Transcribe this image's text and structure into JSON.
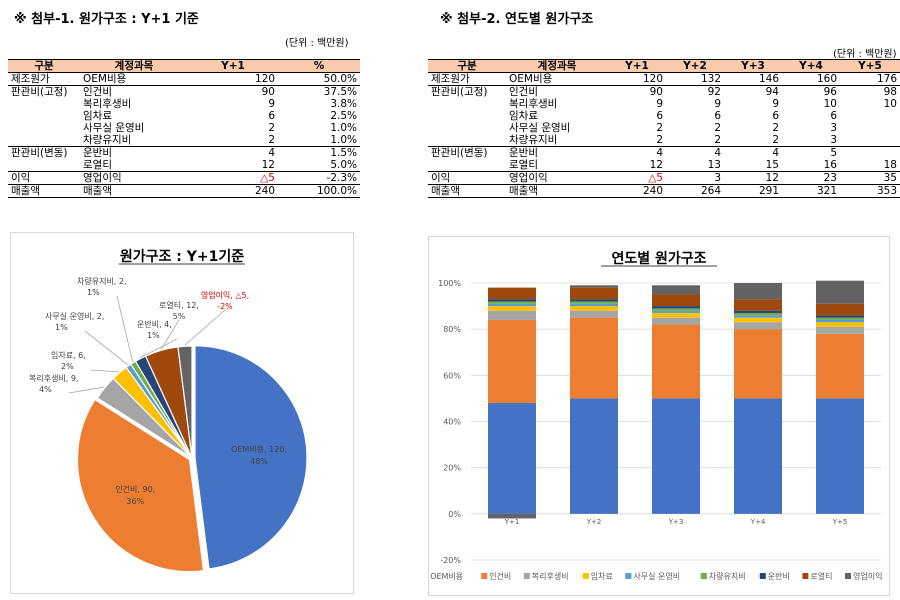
{
  "left": {
    "title": "※ 첨부-1. 원가구조 : Y+1 기준",
    "unit": "(단위 : 백만원)",
    "headers": [
      "구분",
      "계정과목",
      "Y+1",
      "%"
    ],
    "rows": [
      {
        "group": "제조원가",
        "account": "OEM비용",
        "v": "120",
        "pct": "50.0%"
      },
      {
        "group": "판관비(고정)",
        "account": "인건비",
        "v": "90",
        "pct": "37.5%"
      },
      {
        "group": "",
        "account": "복리후생비",
        "v": "9",
        "pct": "3.8%"
      },
      {
        "group": "",
        "account": "임차료",
        "v": "6",
        "pct": "2.5%"
      },
      {
        "group": "",
        "account": "사무실 운영비",
        "v": "2",
        "pct": "1.0%"
      },
      {
        "group": "",
        "account": "차량유지비",
        "v": "2",
        "pct": "1.0%"
      },
      {
        "group": "판관비(변동)",
        "account": "운반비",
        "v": "4",
        "pct": "1.5%"
      },
      {
        "group": "",
        "account": "로열티",
        "v": "12",
        "pct": "5.0%"
      },
      {
        "group": "이익",
        "account": "영업이익",
        "v": "△5",
        "pct": "-2.3%"
      },
      {
        "group": "매출액",
        "account": "매출액",
        "v": "240",
        "pct": "100.0%"
      }
    ]
  },
  "right": {
    "title": "※ 첨부-2. 연도별 원가구조",
    "unit": "(단위 : 백만원)",
    "headers": [
      "구분",
      "계정과목",
      "Y+1",
      "Y+2",
      "Y+3",
      "Y+4",
      "Y+5"
    ],
    "rows": [
      {
        "group": "제조원가",
        "account": "OEM비용",
        "vals": [
          "120",
          "132",
          "146",
          "160",
          "176"
        ]
      },
      {
        "group": "판관비(고정)",
        "account": "인건비",
        "vals": [
          "90",
          "92",
          "94",
          "96",
          "98"
        ]
      },
      {
        "group": "",
        "account": "복리후생비",
        "vals": [
          "9",
          "9",
          "9",
          "10",
          "10"
        ]
      },
      {
        "group": "",
        "account": "임차료",
        "vals": [
          "6",
          "6",
          "6",
          "6",
          ""
        ]
      },
      {
        "group": "",
        "account": "사무실 운영비",
        "vals": [
          "2",
          "2",
          "2",
          "3",
          ""
        ]
      },
      {
        "group": "",
        "account": "차량유지비",
        "vals": [
          "2",
          "2",
          "2",
          "3",
          ""
        ]
      },
      {
        "group": "판관비(변동)",
        "account": "운반비",
        "vals": [
          "4",
          "4",
          "4",
          "5",
          ""
        ]
      },
      {
        "group": "",
        "account": "로열티",
        "vals": [
          "12",
          "13",
          "15",
          "16",
          "18"
        ]
      },
      {
        "group": "이익",
        "account": "영업이익",
        "vals": [
          "△5",
          "3",
          "12",
          "23",
          "35"
        ]
      },
      {
        "group": "매출액",
        "account": "매출액",
        "vals": [
          "240",
          "264",
          "291",
          "321",
          "353"
        ]
      }
    ]
  },
  "chart_data": [
    {
      "type": "pie",
      "title": "원가구조 : Y+1기준",
      "slices": [
        {
          "name": "OEM비용",
          "value": 120,
          "pct": "48%",
          "label": "OEM비용, 120, 48%",
          "color": "#4472c4"
        },
        {
          "name": "인건비",
          "value": 90,
          "pct": "36%",
          "label": "인건비, 90, 36%",
          "color": "#ed7d31"
        },
        {
          "name": "복리후생비",
          "value": 9,
          "pct": "4%",
          "label": "복리후생비, 9, 4%",
          "color": "#a5a5a5"
        },
        {
          "name": "임차료",
          "value": 6,
          "pct": "2%",
          "label": "임차료, 6, 2%",
          "color": "#ffc000"
        },
        {
          "name": "사무실 운영비",
          "value": 2,
          "pct": "1%",
          "label": "사무실 운영비, 2, 1%",
          "color": "#5b9bd5"
        },
        {
          "name": "차량유지비",
          "value": 2,
          "pct": "1%",
          "label": "차량유지비, 2, 1%",
          "color": "#70ad47"
        },
        {
          "name": "운반비",
          "value": 4,
          "pct": "1%",
          "label": "운반비, 4, 1%",
          "color": "#264478"
        },
        {
          "name": "로열티",
          "value": 12,
          "pct": "5%",
          "label": "로열티, 12, 5%",
          "color": "#9e480e"
        },
        {
          "name": "영업이익",
          "value": 5,
          "pct": "-2%",
          "label": "영업이익, △5, -2%",
          "color": "#636363",
          "negative": true
        }
      ]
    },
    {
      "type": "bar",
      "stacked": "percent",
      "title": "연도별 원가구조",
      "categories": [
        "Y+1",
        "Y+2",
        "Y+3",
        "Y+4",
        "Y+5"
      ],
      "ylim": [
        -0.2,
        1.0
      ],
      "yticks": [
        {
          "v": 1.0,
          "label": "100%"
        },
        {
          "v": 0.8,
          "label": "80%"
        },
        {
          "v": 0.6,
          "label": "60%"
        },
        {
          "v": 0.4,
          "label": "40%"
        },
        {
          "v": 0.2,
          "label": "20%"
        },
        {
          "v": 0.0,
          "label": "0%"
        },
        {
          "v": -0.2,
          "label": "-20%"
        }
      ],
      "legend_position": "bottom",
      "series": [
        {
          "name": "OEM비용",
          "color": "#4472c4",
          "values": [
            0.48,
            0.5,
            0.5,
            0.5,
            0.5
          ]
        },
        {
          "name": "인건비",
          "color": "#ed7d31",
          "values": [
            0.36,
            0.35,
            0.32,
            0.3,
            0.28
          ]
        },
        {
          "name": "복리후생비",
          "color": "#a5a5a5",
          "values": [
            0.04,
            0.03,
            0.03,
            0.03,
            0.03
          ]
        },
        {
          "name": "임차료",
          "color": "#ffc000",
          "values": [
            0.02,
            0.02,
            0.02,
            0.02,
            0.02
          ]
        },
        {
          "name": "사무실 운영비",
          "color": "#5b9bd5",
          "values": [
            0.01,
            0.01,
            0.01,
            0.01,
            0.01
          ]
        },
        {
          "name": "차량유지비",
          "color": "#70ad47",
          "values": [
            0.01,
            0.01,
            0.01,
            0.01,
            0.01
          ]
        },
        {
          "name": "운반비",
          "color": "#264478",
          "values": [
            0.01,
            0.01,
            0.01,
            0.01,
            0.01
          ]
        },
        {
          "name": "로열티",
          "color": "#9e480e",
          "values": [
            0.05,
            0.05,
            0.05,
            0.05,
            0.05
          ]
        },
        {
          "name": "영업이익",
          "color": "#636363",
          "values": [
            -0.02,
            0.01,
            0.04,
            0.07,
            0.1
          ]
        }
      ]
    }
  ]
}
